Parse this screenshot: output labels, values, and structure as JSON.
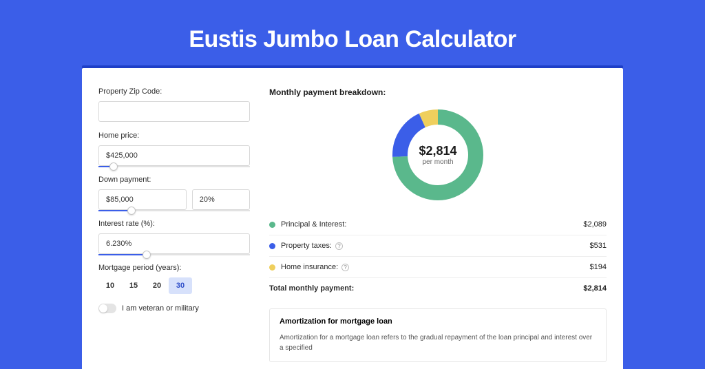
{
  "page": {
    "title": "Eustis Jumbo Loan Calculator"
  },
  "form": {
    "zip": {
      "label": "Property Zip Code:",
      "value": ""
    },
    "home_price": {
      "label": "Home price:",
      "value": "$425,000",
      "slider_pct": 10
    },
    "down_payment": {
      "label": "Down payment:",
      "value": "$85,000",
      "pct": "20%",
      "slider_pct": 22
    },
    "interest": {
      "label": "Interest rate (%):",
      "value": "6.230%",
      "slider_pct": 32
    },
    "period": {
      "label": "Mortgage period (years):",
      "options": [
        "10",
        "15",
        "20",
        "30"
      ],
      "selected": "30"
    },
    "veteran": {
      "label": "I am veteran or military",
      "checked": false
    }
  },
  "breakdown": {
    "heading": "Monthly payment breakdown:",
    "center_value": "$2,814",
    "center_sub": "per month",
    "donut": {
      "radius": 55,
      "stroke": 22,
      "bg_color": "#f3f3f3",
      "segments": [
        {
          "pct": 74.2,
          "color": "#5ab88c"
        },
        {
          "pct": 18.9,
          "color": "#3b5ee8"
        },
        {
          "pct": 6.9,
          "color": "#efcf5d"
        }
      ]
    },
    "items": [
      {
        "label": "Principal & Interest:",
        "value": "$2,089",
        "color": "#5ab88c",
        "info": false
      },
      {
        "label": "Property taxes:",
        "value": "$531",
        "color": "#3b5ee8",
        "info": true
      },
      {
        "label": "Home insurance:",
        "value": "$194",
        "color": "#efcf5d",
        "info": true
      }
    ],
    "total": {
      "label": "Total monthly payment:",
      "value": "$2,814"
    }
  },
  "amort": {
    "heading": "Amortization for mortgage loan",
    "text": "Amortization for a mortgage loan refers to the gradual repayment of the loan principal and interest over a specified"
  },
  "colors": {
    "brand": "#3b5ee8"
  }
}
